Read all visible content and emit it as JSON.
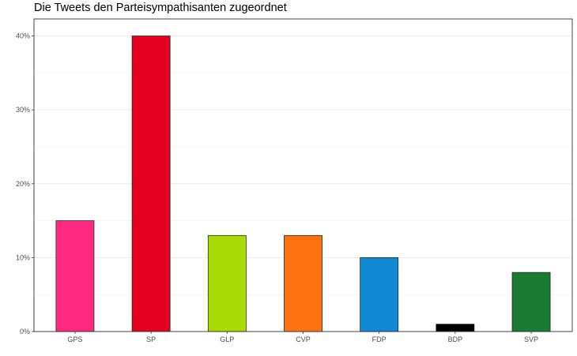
{
  "chart_data": {
    "type": "bar",
    "title": "Die Tweets den Parteisympathisanten zugeordnet",
    "xlabel": "",
    "ylabel": "",
    "categories": [
      "GPS",
      "SP",
      "GLP",
      "CVP",
      "FDP",
      "BDP",
      "SVP"
    ],
    "values": [
      15,
      40,
      13,
      13,
      10,
      1,
      8
    ],
    "colors": [
      "#FF2A7F",
      "#E30020",
      "#A8DA06",
      "#FF7212",
      "#1189D4",
      "#000000",
      "#1A7A32"
    ],
    "ylim": [
      0,
      42.3
    ],
    "y_ticks": [
      0,
      10,
      20,
      30,
      40
    ],
    "y_tick_labels": [
      "0%",
      "10%",
      "20%",
      "30%",
      "40%"
    ],
    "grid": true,
    "legend": "none"
  }
}
